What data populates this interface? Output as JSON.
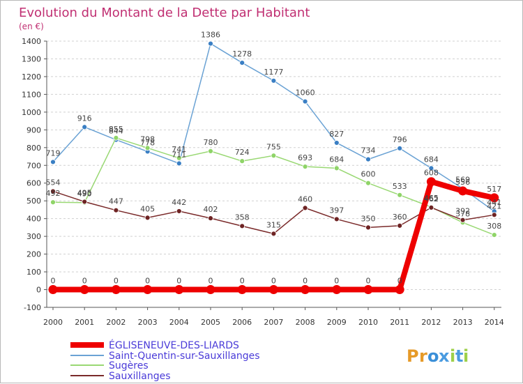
{
  "chart_data": {
    "type": "line",
    "title": "Evolution du Montant de la Dette par Habitant",
    "subtitle": "(en €)",
    "xlabel": "",
    "ylabel": "",
    "ylim": [
      -100,
      1400
    ],
    "yticks": [
      -100,
      0,
      100,
      200,
      300,
      400,
      500,
      600,
      700,
      800,
      900,
      1000,
      1100,
      1200,
      1300,
      1400
    ],
    "grid": "horizontal-dashed",
    "legend_position": "bottom-left",
    "x": [
      "2000",
      "2001",
      "2002",
      "2003",
      "2004",
      "2005",
      "2006",
      "2007",
      "2008",
      "2009",
      "2010",
      "2011",
      "2012",
      "2013",
      "2014"
    ],
    "series": [
      {
        "name": "Saint-Quentin-sur-Sauxillanges",
        "color": "#6aa2d4",
        "marker": "#3a7fc4",
        "values": [
          719,
          916,
          844,
          778,
          711,
          1386,
          1278,
          1177,
          1060,
          827,
          734,
          796,
          684,
          569,
          441
        ]
      },
      {
        "name": "Sugères",
        "color": "#99d873",
        "marker": "#8fd468",
        "values": [
          492,
          490,
          855,
          798,
          741,
          780,
          724,
          755,
          693,
          684,
          600,
          533,
          465,
          378,
          308
        ]
      },
      {
        "name": "Sauxillanges",
        "color": "#7a2a2a",
        "marker": "#6e2323",
        "values": [
          554,
          495,
          447,
          405,
          442,
          402,
          358,
          315,
          460,
          397,
          350,
          360,
          462,
          392,
          421
        ]
      },
      {
        "name": "ÉGLISENEUVE-DES-LIARDS",
        "color": "#ee0000",
        "marker": "#ee0000",
        "highlight": true,
        "values": [
          0,
          0,
          0,
          0,
          0,
          0,
          0,
          0,
          0,
          0,
          0,
          0,
          608,
          556,
          517
        ]
      }
    ],
    "legend": [
      "ÉGLISENEUVE-DES-LIARDS",
      "Saint-Quentin-sur-Sauxillanges",
      "Sugères",
      "Sauxillanges"
    ]
  },
  "branding": {
    "logo_text": "Proxiti",
    "logo_letters": [
      "P",
      "r",
      "o",
      "x",
      "i",
      "t",
      "i"
    ],
    "logo_colors": [
      "#e69a28",
      "#e69a28",
      "#3a8fd8",
      "#4a9be0",
      "#9ed04a",
      "#4a9be0",
      "#9ed04a"
    ]
  },
  "colors": {
    "title": "#c02f72",
    "legend_text": "#4a3bd8",
    "axis_text": "#333333"
  }
}
